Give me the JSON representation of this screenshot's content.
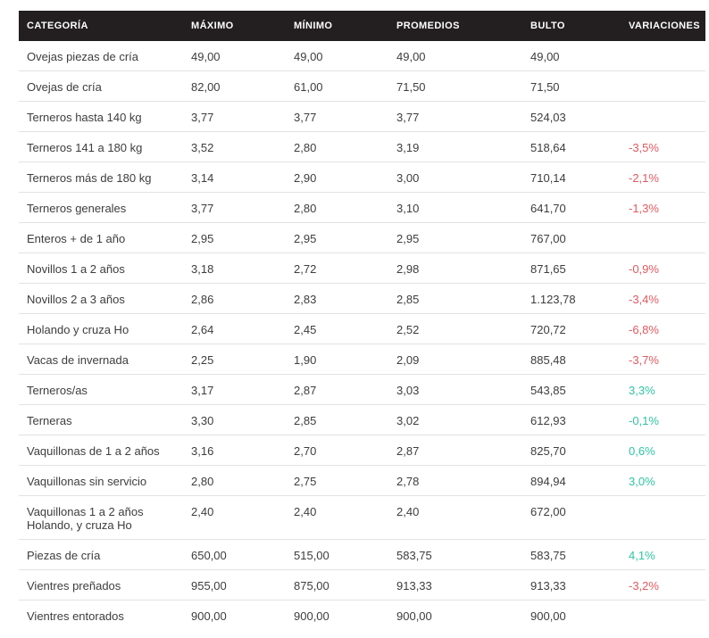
{
  "colors": {
    "header_bg": "#231f20",
    "header_text": "#ffffff",
    "body_text": "#3d3d3d",
    "row_border": "#e2e2e2",
    "negative": "#e2595f",
    "positive": "#2fc4a2",
    "page_bg": "#ffffff"
  },
  "table": {
    "columns": [
      "CATEGORÍA",
      "MÁXIMO",
      "MÍNIMO",
      "PROMEDIOS",
      "BULTO",
      "VARIACIONES"
    ],
    "rows": [
      {
        "category": "Ovejas piezas de cría",
        "category_line2": "",
        "maximo": "49,00",
        "minimo": "49,00",
        "promedios": "49,00",
        "bulto": "49,00",
        "variation": "",
        "variation_color": ""
      },
      {
        "category": "Ovejas de cría",
        "category_line2": "",
        "maximo": "82,00",
        "minimo": "61,00",
        "promedios": "71,50",
        "bulto": "71,50",
        "variation": "",
        "variation_color": ""
      },
      {
        "category": "Terneros hasta 140 kg",
        "category_line2": "",
        "maximo": "3,77",
        "minimo": "3,77",
        "promedios": "3,77",
        "bulto": "524,03",
        "variation": "",
        "variation_color": ""
      },
      {
        "category": "Terneros 141 a 180 kg",
        "category_line2": "",
        "maximo": "3,52",
        "minimo": "2,80",
        "promedios": "3,19",
        "bulto": "518,64",
        "variation": "-3,5%",
        "variation_color": "negative"
      },
      {
        "category": "Terneros más de 180 kg",
        "category_line2": "",
        "maximo": "3,14",
        "minimo": "2,90",
        "promedios": "3,00",
        "bulto": "710,14",
        "variation": "-2,1%",
        "variation_color": "negative"
      },
      {
        "category": "Terneros generales",
        "category_line2": "",
        "maximo": "3,77",
        "minimo": "2,80",
        "promedios": "3,10",
        "bulto": "641,70",
        "variation": "-1,3%",
        "variation_color": "negative"
      },
      {
        "category": "Enteros + de 1 año",
        "category_line2": "",
        "maximo": "2,95",
        "minimo": "2,95",
        "promedios": "2,95",
        "bulto": "767,00",
        "variation": "",
        "variation_color": ""
      },
      {
        "category": "Novillos 1 a 2 años",
        "category_line2": "",
        "maximo": "3,18",
        "minimo": "2,72",
        "promedios": "2,98",
        "bulto": "871,65",
        "variation": "-0,9%",
        "variation_color": "negative"
      },
      {
        "category": "Novillos 2 a 3 años",
        "category_line2": "",
        "maximo": "2,86",
        "minimo": "2,83",
        "promedios": "2,85",
        "bulto": "1.123,78",
        "variation": "-3,4%",
        "variation_color": "negative"
      },
      {
        "category": "Holando y cruza Ho",
        "category_line2": "",
        "maximo": "2,64",
        "minimo": "2,45",
        "promedios": "2,52",
        "bulto": "720,72",
        "variation": "-6,8%",
        "variation_color": "negative"
      },
      {
        "category": "Vacas de invernada",
        "category_line2": "",
        "maximo": "2,25",
        "minimo": "1,90",
        "promedios": "2,09",
        "bulto": "885,48",
        "variation": "-3,7%",
        "variation_color": "negative"
      },
      {
        "category": "Terneros/as",
        "category_line2": "",
        "maximo": "3,17",
        "minimo": "2,87",
        "promedios": "3,03",
        "bulto": "543,85",
        "variation": "3,3%",
        "variation_color": "positive"
      },
      {
        "category": "Terneras",
        "category_line2": "",
        "maximo": "3,30",
        "minimo": "2,85",
        "promedios": "3,02",
        "bulto": "612,93",
        "variation": "-0,1%",
        "variation_color": "positive"
      },
      {
        "category": "Vaquillonas de 1 a 2 años",
        "category_line2": "",
        "maximo": "3,16",
        "minimo": "2,70",
        "promedios": "2,87",
        "bulto": "825,70",
        "variation": "0,6%",
        "variation_color": "positive"
      },
      {
        "category": "Vaquillonas sin servicio",
        "category_line2": "",
        "maximo": "2,80",
        "minimo": "2,75",
        "promedios": "2,78",
        "bulto": "894,94",
        "variation": "3,0%",
        "variation_color": "positive"
      },
      {
        "category": "Vaquillonas 1 a 2 años",
        "category_line2": "Holando, y cruza Ho",
        "maximo": "2,40",
        "minimo": "2,40",
        "promedios": "2,40",
        "bulto": "672,00",
        "variation": "",
        "variation_color": ""
      },
      {
        "category": "Piezas de cría",
        "category_line2": "",
        "maximo": "650,00",
        "minimo": "515,00",
        "promedios": "583,75",
        "bulto": "583,75",
        "variation": "4,1%",
        "variation_color": "positive"
      },
      {
        "category": "Vientres preñados",
        "category_line2": "",
        "maximo": "955,00",
        "minimo": "875,00",
        "promedios": "913,33",
        "bulto": "913,33",
        "variation": "-3,2%",
        "variation_color": "negative"
      },
      {
        "category": "Vientres entorados",
        "category_line2": "",
        "maximo": "900,00",
        "minimo": "900,00",
        "promedios": "900,00",
        "bulto": "900,00",
        "variation": "",
        "variation_color": ""
      }
    ]
  }
}
